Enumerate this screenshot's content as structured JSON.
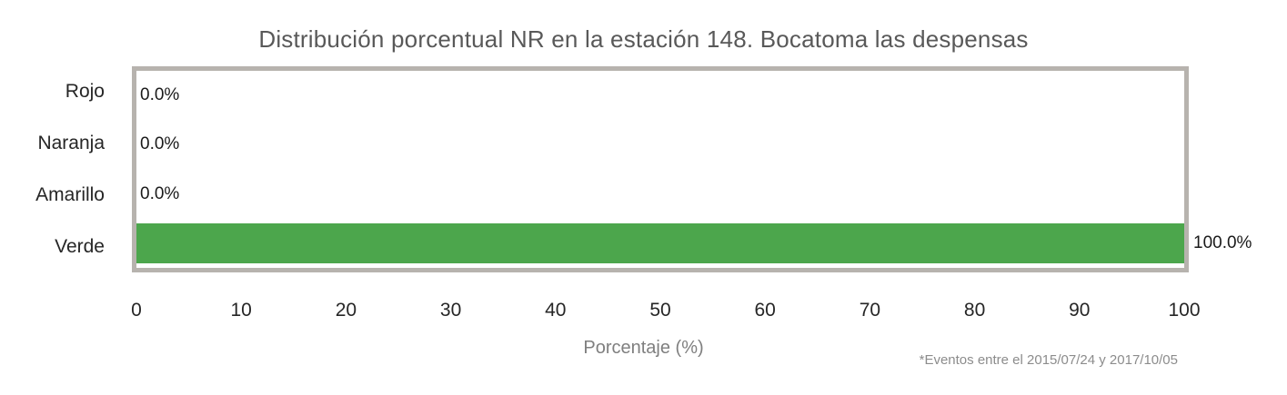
{
  "title": "Distribución porcentual NR en la estación 148. Bocatoma las despensas",
  "footnote": "*Eventos entre el 2015/07/24 y 2017/10/05",
  "colors": {
    "bar_green": "#4ca64c",
    "plot_border_gray": "#b7b3ae",
    "title_gray": "#595959",
    "axis_title_gray": "#7f7f7f"
  },
  "chart_data": {
    "type": "bar",
    "orientation": "horizontal",
    "title": "Distribución porcentual NR en la estación 148. Bocatoma las despensas",
    "categories": [
      "Rojo",
      "Naranja",
      "Amarillo",
      "Verde"
    ],
    "values": [
      0.0,
      0.0,
      0.0,
      100.0
    ],
    "value_labels": [
      "0.0%",
      "0.0%",
      "0.0%",
      "100.0%"
    ],
    "xlabel": "Porcentaje (%)",
    "ylabel": "",
    "xlim": [
      0,
      100
    ],
    "xticks": [
      0,
      10,
      20,
      30,
      40,
      50,
      60,
      70,
      80,
      90,
      100
    ],
    "grid": false,
    "legend": false,
    "annotation": "*Eventos entre el 2015/07/24 y 2017/10/05"
  }
}
